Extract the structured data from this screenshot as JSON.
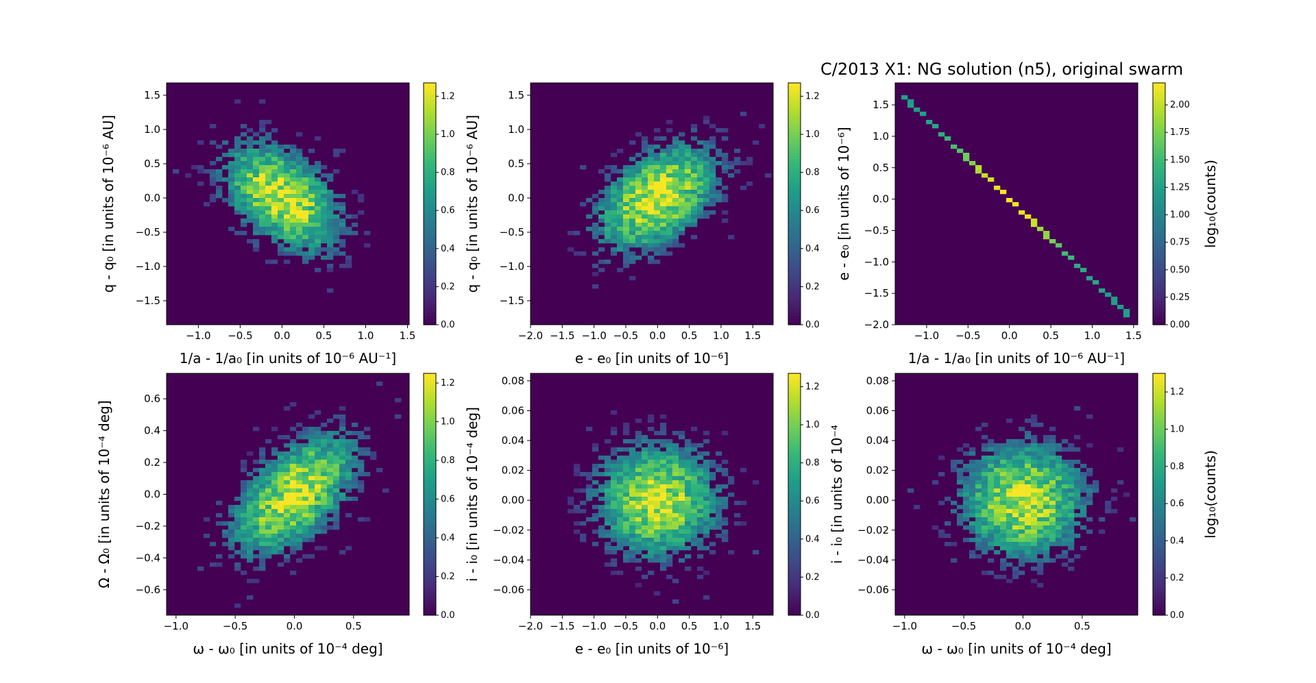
{
  "figure": {
    "title": "C/2013 X1: NG solution (n5), original swarm"
  },
  "colors": {
    "background": "#440154",
    "viridis": [
      "#440154",
      "#482878",
      "#3e4989",
      "#31688e",
      "#26828e",
      "#1f9e89",
      "#35b779",
      "#6ece58",
      "#b5de2b",
      "#fde725"
    ]
  },
  "chart_data": [
    {
      "type": "heatmap",
      "panel": "top-left",
      "xlabel": "1/a - 1/a₀ [in units of 10⁻⁶ AU⁻¹]",
      "ylabel": "q - q₀ [in units of 10⁻⁶ AU]",
      "xlim": [
        -1.38,
        1.52
      ],
      "ylim": [
        -1.85,
        1.68
      ],
      "xticks": [
        -1.0,
        -0.5,
        0.0,
        0.5,
        1.0,
        1.5
      ],
      "xtick_labels": [
        "−1.0",
        "−0.5",
        "0.0",
        "0.5",
        "1.0",
        "1.5"
      ],
      "yticks": [
        -1.5,
        -1.0,
        -0.5,
        0.0,
        0.5,
        1.0,
        1.5
      ],
      "ytick_labels": [
        "−1.5",
        "−1.0",
        "−0.5",
        "0.0",
        "0.5",
        "1.0",
        "1.5"
      ],
      "distribution": {
        "center": [
          0.0,
          0.0
        ],
        "sigma": [
          0.4,
          0.45
        ],
        "rho": -0.45,
        "peak_log10_counts": 1.25
      },
      "colorbar": {
        "min": 0.0,
        "max": 1.27,
        "ticks": [
          0.0,
          0.2,
          0.4,
          0.6,
          0.8,
          1.0,
          1.2
        ],
        "tick_labels": [
          "0.0",
          "0.2",
          "0.4",
          "0.6",
          "0.8",
          "1.0",
          "1.2"
        ],
        "label": ""
      }
    },
    {
      "type": "heatmap",
      "panel": "top-middle",
      "xlabel": "e - e₀ [in units of 10⁻⁶]",
      "ylabel": "q - q₀ [in units of 10⁻⁶ AU]",
      "xlim": [
        -2.0,
        1.82
      ],
      "ylim": [
        -1.85,
        1.68
      ],
      "xticks": [
        -2.0,
        -1.5,
        -1.0,
        -0.5,
        0.0,
        0.5,
        1.0,
        1.5
      ],
      "xtick_labels": [
        "−2.0",
        "−1.5",
        "−1.0",
        "−0.5",
        "0.0",
        "0.5",
        "1.0",
        "1.5"
      ],
      "yticks": [
        -1.5,
        -1.0,
        -0.5,
        0.0,
        0.5,
        1.0,
        1.5
      ],
      "ytick_labels": [
        "−1.5",
        "−1.0",
        "−0.5",
        "0.0",
        "0.5",
        "1.0",
        "1.5"
      ],
      "distribution": {
        "center": [
          0.0,
          0.0
        ],
        "sigma": [
          0.55,
          0.45
        ],
        "rho": 0.45,
        "peak_log10_counts": 1.25
      },
      "colorbar": {
        "min": 0.0,
        "max": 1.27,
        "ticks": [
          0.0,
          0.2,
          0.4,
          0.6,
          0.8,
          1.0,
          1.2
        ],
        "tick_labels": [
          "0.0",
          "0.2",
          "0.4",
          "0.6",
          "0.8",
          "1.0",
          "1.2"
        ],
        "label": ""
      }
    },
    {
      "type": "heatmap",
      "panel": "top-right",
      "xlabel": "1/a - 1/a₀ [in units of 10⁻⁶ AU⁻¹]",
      "ylabel": "e - e₀ [in units of 10⁻⁶]",
      "xlim": [
        -1.38,
        1.55
      ],
      "ylim": [
        -2.0,
        1.85
      ],
      "xticks": [
        -1.0,
        -0.5,
        0.0,
        0.5,
        1.0,
        1.5
      ],
      "xtick_labels": [
        "−1.0",
        "−0.5",
        "0.0",
        "0.5",
        "1.0",
        "1.5"
      ],
      "yticks": [
        -2.0,
        -1.5,
        -1.0,
        -0.5,
        0.0,
        0.5,
        1.0,
        1.5
      ],
      "ytick_labels": [
        "−2.0",
        "−1.5",
        "−1.0",
        "−0.5",
        "0.0",
        "0.5",
        "1.0",
        "1.5"
      ],
      "distribution": {
        "line": {
          "slope": -1.28,
          "x_range": [
            -1.3,
            1.45
          ]
        },
        "sigma_x": 0.45,
        "peak_log10_counts": 2.2
      },
      "colorbar": {
        "min": 0.0,
        "max": 2.2,
        "ticks": [
          0.0,
          0.25,
          0.5,
          0.75,
          1.0,
          1.25,
          1.5,
          1.75,
          2.0
        ],
        "tick_labels": [
          "0.00",
          "0.25",
          "0.50",
          "0.75",
          "1.00",
          "1.25",
          "1.50",
          "1.75",
          "2.00"
        ],
        "label": "log₁₀(counts)"
      }
    },
    {
      "type": "heatmap",
      "panel": "bottom-left",
      "xlabel": "ω - ω₀ [in units of 10⁻⁴ deg]",
      "ylabel": "Ω - Ω₀ [in units of 10⁻⁴ deg]",
      "xlim": [
        -1.08,
        0.97
      ],
      "ylim": [
        -0.76,
        0.76
      ],
      "xticks": [
        -1.0,
        -0.5,
        0.0,
        0.5
      ],
      "xtick_labels": [
        "−1.0",
        "−0.5",
        "0.0",
        "0.5"
      ],
      "yticks": [
        -0.6,
        -0.4,
        -0.2,
        0.0,
        0.2,
        0.4,
        0.6
      ],
      "ytick_labels": [
        "−0.6",
        "−0.4",
        "−0.2",
        "0.0",
        "0.2",
        "0.4",
        "0.6"
      ],
      "distribution": {
        "center": [
          0.0,
          0.0
        ],
        "sigma": [
          0.3,
          0.22
        ],
        "rho": 0.55,
        "peak_log10_counts": 1.2
      },
      "colorbar": {
        "min": 0.0,
        "max": 1.25,
        "ticks": [
          0.0,
          0.2,
          0.4,
          0.6,
          0.8,
          1.0,
          1.2
        ],
        "tick_labels": [
          "0.0",
          "0.2",
          "0.4",
          "0.6",
          "0.8",
          "1.0",
          "1.2"
        ],
        "label": ""
      }
    },
    {
      "type": "heatmap",
      "panel": "bottom-middle",
      "xlabel": "e - e₀ [in units of 10⁻⁶]",
      "ylabel": "i - i₀ [in units of 10⁻⁴ deg]",
      "xlim": [
        -2.0,
        1.82
      ],
      "ylim": [
        -0.077,
        0.085
      ],
      "xticks": [
        -2.0,
        -1.5,
        -1.0,
        -0.5,
        0.0,
        0.5,
        1.0,
        1.5
      ],
      "xtick_labels": [
        "−2.0",
        "−1.5",
        "−1.0",
        "−0.5",
        "0.0",
        "0.5",
        "1.0",
        "1.5"
      ],
      "yticks": [
        -0.06,
        -0.04,
        -0.02,
        0.0,
        0.02,
        0.04,
        0.06,
        0.08
      ],
      "ytick_labels": [
        "−0.06",
        "−0.04",
        "−0.02",
        "0.00",
        "0.02",
        "0.04",
        "0.06",
        "0.08"
      ],
      "distribution": {
        "center": [
          0.0,
          0.0
        ],
        "sigma": [
          0.55,
          0.022
        ],
        "rho": 0.0,
        "peak_log10_counts": 1.2
      },
      "colorbar": {
        "min": 0.0,
        "max": 1.27,
        "ticks": [
          0.0,
          0.2,
          0.4,
          0.6,
          0.8,
          1.0,
          1.2
        ],
        "tick_labels": [
          "0.0",
          "0.2",
          "0.4",
          "0.6",
          "0.8",
          "1.0",
          "1.2"
        ],
        "label": ""
      }
    },
    {
      "type": "heatmap",
      "panel": "bottom-right",
      "xlabel": "ω - ω₀ [in units of 10⁻⁴ deg]",
      "ylabel": "i - i₀ [in units of 10⁻⁴",
      "xlim": [
        -1.08,
        0.97
      ],
      "ylim": [
        -0.077,
        0.085
      ],
      "xticks": [
        -1.0,
        -0.5,
        0.0,
        0.5
      ],
      "xtick_labels": [
        "−1.0",
        "−0.5",
        "0.0",
        "0.5"
      ],
      "yticks": [
        -0.06,
        -0.04,
        -0.02,
        0.0,
        0.02,
        0.04,
        0.06,
        0.08
      ],
      "ytick_labels": [
        "−0.06",
        "−0.04",
        "−0.02",
        "0.00",
        "0.02",
        "0.04",
        "0.06",
        "0.08"
      ],
      "distribution": {
        "center": [
          0.0,
          0.0
        ],
        "sigma": [
          0.3,
          0.022
        ],
        "rho": 0.0,
        "peak_log10_counts": 1.25
      },
      "colorbar": {
        "min": 0.0,
        "max": 1.3,
        "ticks": [
          0.0,
          0.2,
          0.4,
          0.6,
          0.8,
          1.0,
          1.2
        ],
        "tick_labels": [
          "0.0",
          "0.2",
          "0.4",
          "0.6",
          "0.8",
          "1.0",
          "1.2"
        ],
        "label": "log₁₀(counts)"
      }
    }
  ]
}
